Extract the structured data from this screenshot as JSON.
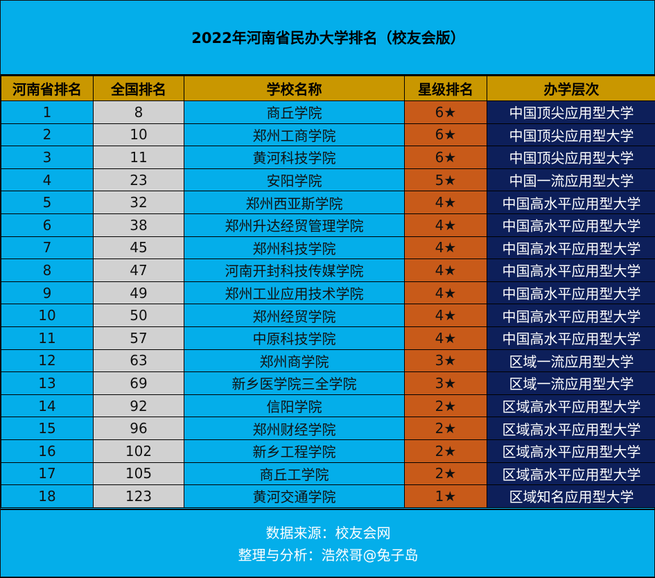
{
  "title": "2022年河南省民办大学排名（校友会版）",
  "colors": {
    "background": "#04AEEA",
    "header": "#C99700",
    "national_rank_cell": "#D1D1D1",
    "star_cell": "#C85A19",
    "level_cell": "#0D1F5A"
  },
  "table": {
    "headers": [
      "河南省排名",
      "全国排名",
      "学校名称",
      "星级排名",
      "办学层次"
    ],
    "rows": [
      {
        "rank": "1",
        "national": "8",
        "name": "商丘学院",
        "star": "6★",
        "level": "中国顶尖应用型大学"
      },
      {
        "rank": "2",
        "national": "10",
        "name": "郑州工商学院",
        "star": "6★",
        "level": "中国顶尖应用型大学"
      },
      {
        "rank": "3",
        "national": "11",
        "name": "黄河科技学院",
        "star": "6★",
        "level": "中国顶尖应用型大学"
      },
      {
        "rank": "4",
        "national": "23",
        "name": "安阳学院",
        "star": "5★",
        "level": "中国一流应用型大学"
      },
      {
        "rank": "5",
        "national": "32",
        "name": "郑州西亚斯学院",
        "star": "4★",
        "level": "中国高水平应用型大学"
      },
      {
        "rank": "6",
        "national": "38",
        "name": "郑州升达经贸管理学院",
        "star": "4★",
        "level": "中国高水平应用型大学"
      },
      {
        "rank": "7",
        "national": "45",
        "name": "郑州科技学院",
        "star": "4★",
        "level": "中国高水平应用型大学"
      },
      {
        "rank": "8",
        "national": "47",
        "name": "河南开封科技传媒学院",
        "star": "4★",
        "level": "中国高水平应用型大学"
      },
      {
        "rank": "9",
        "national": "49",
        "name": "郑州工业应用技术学院",
        "star": "4★",
        "level": "中国高水平应用型大学"
      },
      {
        "rank": "10",
        "national": "50",
        "name": "郑州经贸学院",
        "star": "4★",
        "level": "中国高水平应用型大学"
      },
      {
        "rank": "11",
        "national": "57",
        "name": "中原科技学院",
        "star": "4★",
        "level": "中国高水平应用型大学"
      },
      {
        "rank": "12",
        "national": "63",
        "name": "郑州商学院",
        "star": "3★",
        "level": "区域一流应用型大学"
      },
      {
        "rank": "13",
        "national": "69",
        "name": "新乡医学院三全学院",
        "star": "3★",
        "level": "区域一流应用型大学"
      },
      {
        "rank": "14",
        "national": "92",
        "name": "信阳学院",
        "star": "2★",
        "level": "区域高水平应用型大学"
      },
      {
        "rank": "15",
        "national": "96",
        "name": "郑州财经学院",
        "star": "2★",
        "level": "区域高水平应用型大学"
      },
      {
        "rank": "16",
        "national": "102",
        "name": "新乡工程学院",
        "star": "2★",
        "level": "区域高水平应用型大学"
      },
      {
        "rank": "17",
        "national": "105",
        "name": "商丘工学院",
        "star": "2★",
        "level": "区域高水平应用型大学"
      },
      {
        "rank": "18",
        "national": "123",
        "name": "黄河交通学院",
        "star": "1★",
        "level": "区域知名应用型大学"
      }
    ]
  },
  "footer": {
    "source": "数据来源：校友会网",
    "credit": "整理与分析：浩然哥@兔子岛"
  }
}
